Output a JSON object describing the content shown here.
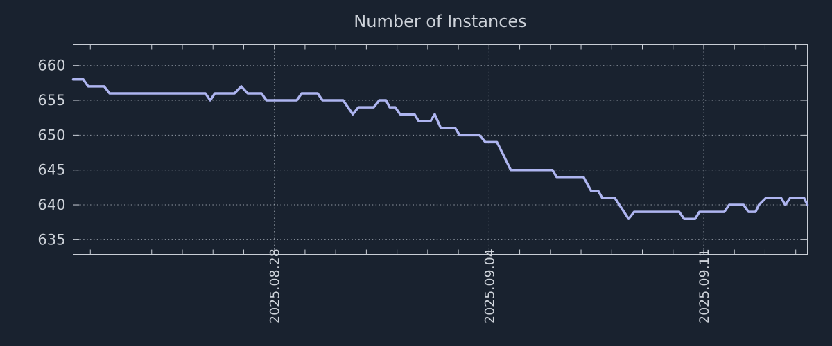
{
  "title": "Number of Instances",
  "colors": {
    "background": "#19222f",
    "line": "#aeb5f0",
    "grid": "#a8b0ba",
    "axis": "#c9ced6",
    "text": "#ced3da"
  },
  "chart_data": {
    "type": "line",
    "title": "Number of Instances",
    "legend": "none",
    "grid": "dotted horizontal and vertical at major ticks",
    "x_unit": "days relative to 2025-08-28 00:00",
    "x_range": [
      -6.56,
      17.38
    ],
    "y_range": [
      632.9,
      663.0
    ],
    "y_ticks": [
      635,
      640,
      645,
      650,
      655,
      660
    ],
    "x_major_ticks": [
      {
        "t": 0,
        "label": "2025.08.28"
      },
      {
        "t": 7,
        "label": "2025.09.04"
      },
      {
        "t": 14,
        "label": "2025.09.11"
      }
    ],
    "x_minor_tick_interval_days": 1,
    "points": [
      [
        -6.56,
        658
      ],
      [
        -6.23,
        658
      ],
      [
        -6.07,
        657
      ],
      [
        -5.55,
        657
      ],
      [
        -5.37,
        656
      ],
      [
        -2.25,
        656
      ],
      [
        -2.09,
        655
      ],
      [
        -1.94,
        656
      ],
      [
        -1.3,
        656
      ],
      [
        -1.08,
        657
      ],
      [
        -0.87,
        656
      ],
      [
        -0.42,
        656
      ],
      [
        -0.26,
        655
      ],
      [
        0.73,
        655
      ],
      [
        0.89,
        656
      ],
      [
        1.41,
        656
      ],
      [
        1.57,
        655
      ],
      [
        2.24,
        655
      ],
      [
        2.56,
        653
      ],
      [
        2.74,
        654
      ],
      [
        3.24,
        654
      ],
      [
        3.42,
        655
      ],
      [
        3.64,
        655
      ],
      [
        3.76,
        654
      ],
      [
        3.94,
        654
      ],
      [
        4.1,
        653
      ],
      [
        4.57,
        653
      ],
      [
        4.71,
        652
      ],
      [
        5.09,
        652
      ],
      [
        5.23,
        653
      ],
      [
        5.43,
        651
      ],
      [
        5.9,
        651
      ],
      [
        6.04,
        650
      ],
      [
        6.69,
        650
      ],
      [
        6.88,
        649
      ],
      [
        7.26,
        649
      ],
      [
        7.71,
        645
      ],
      [
        9.07,
        645
      ],
      [
        9.2,
        644
      ],
      [
        10.08,
        644
      ],
      [
        10.33,
        642
      ],
      [
        10.56,
        642
      ],
      [
        10.69,
        641
      ],
      [
        11.1,
        641
      ],
      [
        11.55,
        638
      ],
      [
        11.73,
        639
      ],
      [
        13.2,
        639
      ],
      [
        13.36,
        638
      ],
      [
        13.72,
        638
      ],
      [
        13.86,
        639
      ],
      [
        14.67,
        639
      ],
      [
        14.83,
        640
      ],
      [
        15.3,
        640
      ],
      [
        15.46,
        639
      ],
      [
        15.69,
        639
      ],
      [
        15.8,
        640
      ],
      [
        16.03,
        641
      ],
      [
        16.52,
        641
      ],
      [
        16.66,
        640
      ],
      [
        16.82,
        641
      ],
      [
        17.27,
        641
      ],
      [
        17.38,
        640
      ]
    ]
  }
}
